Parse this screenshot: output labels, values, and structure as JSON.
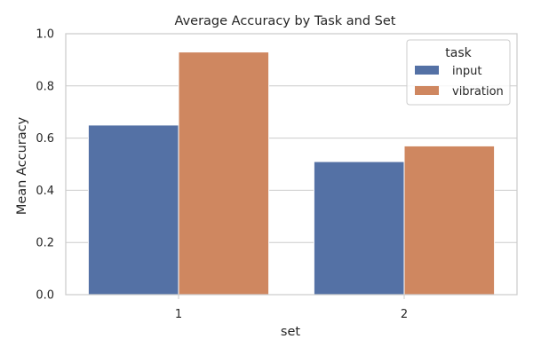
{
  "chart_data": {
    "type": "bar",
    "title": "Average Accuracy by Task and Set",
    "xlabel": "set",
    "ylabel": "Mean Accuracy",
    "categories": [
      "1",
      "2"
    ],
    "series": [
      {
        "name": "input",
        "values": [
          0.65,
          0.51
        ],
        "color": "#5471a5"
      },
      {
        "name": "vibration",
        "values": [
          0.93,
          0.57
        ],
        "color": "#cf8760"
      }
    ],
    "ylim": [
      0,
      1.0
    ],
    "yticks": [
      "0.0",
      "0.2",
      "0.4",
      "0.6",
      "0.8",
      "1.0"
    ],
    "grid": "horizontal",
    "legend": {
      "title": "task",
      "placement": "top-right"
    },
    "colors": {
      "grid": "#cccccc",
      "spine": "#cccccc",
      "text": "#262626"
    }
  }
}
